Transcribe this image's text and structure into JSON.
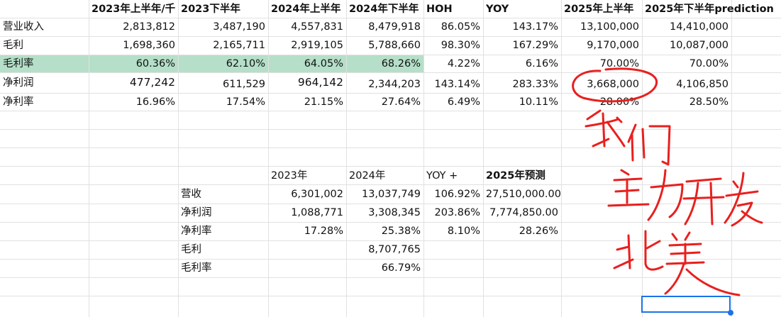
{
  "top_table": {
    "headers": [
      "",
      "2023年上半年/千",
      "2023下半年",
      "2024年上半年",
      "2024年下半年",
      "HOH",
      "YOY",
      "2025年上半年",
      "2025年下半年prediction"
    ],
    "rows": [
      {
        "label": "营业收入",
        "values": [
          "2,813,812",
          "3,487,190",
          "4,557,831",
          "8,479,918",
          "86.05%",
          "143.17%",
          "13,100,000",
          "14,410,000"
        ]
      },
      {
        "label": "毛利",
        "values": [
          "1,698,360",
          "2,165,711",
          "2,919,105",
          "5,788,660",
          "98.30%",
          "167.29%",
          "9,170,000",
          "10,087,000"
        ]
      },
      {
        "label": "毛利率",
        "values": [
          "60.36%",
          "62.10%",
          "64.05%",
          "68.26%",
          "4.22%",
          "6.16%",
          "70.00%",
          "70.00%"
        ]
      },
      {
        "label": "净利润",
        "values": [
          "477,242",
          "611,529",
          "964,142",
          "2,344,203",
          "143.14%",
          "283.33%",
          "3,668,000",
          "4,106,850"
        ]
      },
      {
        "label": "净利率",
        "values": [
          "16.96%",
          "17.54%",
          "21.15%",
          "27.64%",
          "6.49%",
          "10.11%",
          "28.00%",
          "28.50%"
        ]
      }
    ]
  },
  "bottom_table": {
    "headers": [
      "",
      "2023年",
      "2024年",
      "YOY +",
      "2025年预测"
    ],
    "rows": [
      {
        "label": "营收",
        "values": [
          "6,301,002",
          "13,037,749",
          "106.92%",
          "27,510,000.00"
        ]
      },
      {
        "label": "净利润",
        "values": [
          "1,088,771",
          "3,308,345",
          "203.86%",
          "7,774,850.00"
        ]
      },
      {
        "label": "净利率",
        "values": [
          "17.28%",
          "25.38%",
          "8.10%",
          "28.26%"
        ]
      },
      {
        "label": "毛利",
        "values": [
          "",
          "8,707,765",
          "",
          ""
        ]
      },
      {
        "label": "毛利率",
        "values": [
          "",
          "66.79%",
          "",
          ""
        ]
      }
    ]
  },
  "handwriting": {
    "text": "我们主力开发北美",
    "color": "#e8201e"
  },
  "highlight_color": "#b5dfc8",
  "selection_color": "#1a73e8"
}
